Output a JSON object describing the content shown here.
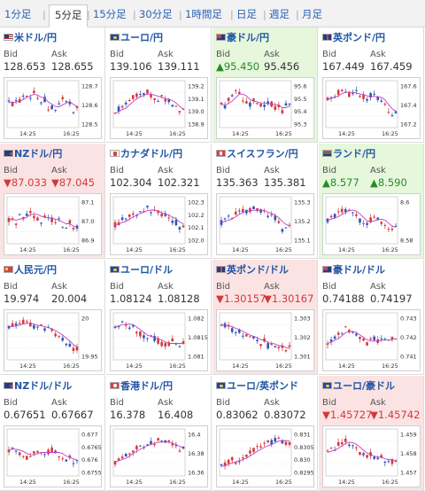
{
  "tabs": [
    "1分足",
    "5分足",
    "15分足",
    "30分足",
    "1時間足",
    "日足",
    "週足",
    "月足"
  ],
  "active_tab": 1,
  "bid_label": "Bid",
  "ask_label": "Ask",
  "x_ticks": [
    "14:25",
    "16:25"
  ],
  "panels": [
    {
      "title": "米ドル/円",
      "flag": "us",
      "bid": "128.653",
      "ask": "128.655",
      "state": "none",
      "bid_arrow": "",
      "ask_arrow": "",
      "y_ticks": [
        "128.7",
        "128.6",
        "128.5"
      ],
      "trend": [
        0.55,
        0.5,
        0.6,
        0.58,
        0.7,
        0.72,
        0.68,
        0.75,
        0.62,
        0.55,
        0.6,
        0.4,
        0.45,
        0.35,
        0.55,
        0.6,
        0.58,
        0.5,
        0.3,
        0.42
      ],
      "ma_color": "#c43fc4"
    },
    {
      "title": "ユーロ/円",
      "flag": "eu",
      "bid": "139.106",
      "ask": "139.111",
      "state": "none",
      "bid_arrow": "",
      "ask_arrow": "",
      "y_ticks": [
        "139.2",
        "139.1",
        "139.0",
        "138.9"
      ],
      "trend": [
        0.3,
        0.4,
        0.45,
        0.5,
        0.6,
        0.65,
        0.7,
        0.68,
        0.72,
        0.75,
        0.7,
        0.6,
        0.62,
        0.65,
        0.6,
        0.55,
        0.5,
        0.45,
        0.3,
        0.35
      ],
      "ma_color": "#c43fc4"
    },
    {
      "title": "豪ドル/円",
      "flag": "au",
      "bid": "95.450",
      "ask": "95.456",
      "state": "up",
      "bid_arrow": "▲",
      "ask_arrow": "",
      "y_ticks": [
        "95.6",
        "95.5",
        "95.4",
        "95.3"
      ],
      "trend": [
        0.5,
        0.45,
        0.6,
        0.7,
        0.8,
        0.75,
        0.6,
        0.55,
        0.5,
        0.6,
        0.55,
        0.45,
        0.5,
        0.55,
        0.5,
        0.4,
        0.45,
        0.35,
        0.5,
        0.55
      ],
      "ma_color": "#c43fc4"
    },
    {
      "title": "英ポンド/円",
      "flag": "gb",
      "bid": "167.449",
      "ask": "167.459",
      "state": "none",
      "bid_arrow": "",
      "ask_arrow": "",
      "y_ticks": [
        "167.6",
        "167.4",
        "167.2"
      ],
      "trend": [
        0.6,
        0.65,
        0.7,
        0.75,
        0.8,
        0.78,
        0.7,
        0.72,
        0.75,
        0.7,
        0.65,
        0.6,
        0.7,
        0.72,
        0.6,
        0.55,
        0.5,
        0.3,
        0.25,
        0.35
      ],
      "ma_color": "#c43fc4"
    },
    {
      "title": "NZドル/円",
      "flag": "nz",
      "bid": "87.033",
      "ask": "87.045",
      "state": "down",
      "bid_arrow": "▼",
      "ask_arrow": "▼",
      "y_ticks": [
        "87.1",
        "87.0",
        "86.9"
      ],
      "trend": [
        0.5,
        0.55,
        0.45,
        0.6,
        0.55,
        0.65,
        0.7,
        0.6,
        0.55,
        0.5,
        0.6,
        0.55,
        0.5,
        0.45,
        0.5,
        0.4,
        0.35,
        0.45,
        0.3,
        0.35
      ],
      "ma_color": "#c43fc4"
    },
    {
      "title": "カナダドル/円",
      "flag": "ca",
      "bid": "102.304",
      "ask": "102.321",
      "state": "none",
      "bid_arrow": "",
      "ask_arrow": "",
      "y_ticks": [
        "102.3",
        "102.2",
        "102.1",
        "102.0"
      ],
      "trend": [
        0.4,
        0.45,
        0.5,
        0.55,
        0.6,
        0.62,
        0.65,
        0.7,
        0.72,
        0.75,
        0.7,
        0.68,
        0.65,
        0.6,
        0.62,
        0.55,
        0.5,
        0.45,
        0.35,
        0.4
      ],
      "ma_color": "#c43fc4"
    },
    {
      "title": "スイスフラン/円",
      "flag": "ch",
      "bid": "135.363",
      "ask": "135.381",
      "state": "none",
      "bid_arrow": "",
      "ask_arrow": "",
      "y_ticks": [
        "135.3",
        "135.2",
        "135.1"
      ],
      "trend": [
        0.45,
        0.5,
        0.55,
        0.6,
        0.65,
        0.7,
        0.72,
        0.68,
        0.7,
        0.75,
        0.72,
        0.7,
        0.65,
        0.62,
        0.6,
        0.55,
        0.45,
        0.3,
        0.35,
        0.4
      ],
      "ma_color": "#c43fc4"
    },
    {
      "title": "ランド/円",
      "flag": "za",
      "bid": "8.577",
      "ask": "8.590",
      "state": "up",
      "bid_arrow": "▲",
      "ask_arrow": "▲",
      "y_ticks": [
        "8.6",
        "8.58"
      ],
      "trend": [
        0.5,
        0.55,
        0.6,
        0.65,
        0.7,
        0.72,
        0.75,
        0.7,
        0.6,
        0.5,
        0.45,
        0.4,
        0.5,
        0.6,
        0.55,
        0.45,
        0.4,
        0.35,
        0.3,
        0.35
      ],
      "ma_color": "#c43fc4"
    },
    {
      "title": "人民元/円",
      "flag": "cn",
      "bid": "19.974",
      "ask": "20.004",
      "state": "none",
      "bid_arrow": "",
      "ask_arrow": "",
      "y_ticks": [
        "20",
        "19.95"
      ],
      "trend": [
        0.7,
        0.72,
        0.75,
        0.78,
        0.8,
        0.78,
        0.75,
        0.72,
        0.7,
        0.72,
        0.68,
        0.65,
        0.6,
        0.55,
        0.5,
        0.45,
        0.35,
        0.3,
        0.2,
        0.25
      ],
      "ma_color": "#c43fc4"
    },
    {
      "title": "ユーロ/ドル",
      "flag": "eu",
      "bid": "1.08124",
      "ask": "1.08128",
      "state": "none",
      "bid_arrow": "",
      "ask_arrow": "",
      "y_ticks": [
        "1.082",
        "1.0815",
        "1.081"
      ],
      "trend": [
        0.7,
        0.75,
        0.8,
        0.78,
        0.72,
        0.7,
        0.6,
        0.55,
        0.5,
        0.45,
        0.5,
        0.45,
        0.4,
        0.35,
        0.3,
        0.35,
        0.4,
        0.35,
        0.3,
        0.35
      ],
      "ma_color": "#c43fc4"
    },
    {
      "title": "英ポンド/ドル",
      "flag": "gb",
      "bid": "1.30157",
      "ask": "1.30167",
      "state": "down",
      "bid_arrow": "▼",
      "ask_arrow": "▼",
      "y_ticks": [
        "1.303",
        "1.302",
        "1.301"
      ],
      "trend": [
        0.75,
        0.72,
        0.7,
        0.65,
        0.62,
        0.6,
        0.55,
        0.5,
        0.45,
        0.5,
        0.42,
        0.35,
        0.4,
        0.3,
        0.35,
        0.3,
        0.25,
        0.3,
        0.2,
        0.25
      ],
      "ma_color": "#c43fc4"
    },
    {
      "title": "豪ドル/ドル",
      "flag": "au",
      "bid": "0.74188",
      "ask": "0.74197",
      "state": "none",
      "bid_arrow": "",
      "ask_arrow": "",
      "y_ticks": [
        "0.743",
        "0.742",
        "0.741"
      ],
      "trend": [
        0.35,
        0.4,
        0.5,
        0.55,
        0.6,
        0.65,
        0.62,
        0.55,
        0.5,
        0.45,
        0.4,
        0.35,
        0.4,
        0.45,
        0.4,
        0.42,
        0.45,
        0.4,
        0.45,
        0.5
      ],
      "ma_color": "#c43fc4"
    },
    {
      "title": "NZドル/ドル",
      "flag": "nz",
      "bid": "0.67651",
      "ask": "0.67667",
      "state": "none",
      "bid_arrow": "",
      "ask_arrow": "",
      "y_ticks": [
        "0.677",
        "0.6765",
        "0.676",
        "0.6755"
      ],
      "trend": [
        0.55,
        0.6,
        0.55,
        0.5,
        0.45,
        0.4,
        0.45,
        0.5,
        0.55,
        0.5,
        0.45,
        0.5,
        0.55,
        0.5,
        0.45,
        0.4,
        0.35,
        0.4,
        0.3,
        0.35
      ],
      "ma_color": "#c43fc4"
    },
    {
      "title": "香港ドル/円",
      "flag": "hk",
      "bid": "16.378",
      "ask": "16.408",
      "state": "none",
      "bid_arrow": "",
      "ask_arrow": "",
      "y_ticks": [
        "16.4",
        "16.38",
        "16.36"
      ],
      "trend": [
        0.3,
        0.35,
        0.4,
        0.45,
        0.5,
        0.55,
        0.6,
        0.62,
        0.65,
        0.7,
        0.72,
        0.7,
        0.75,
        0.72,
        0.7,
        0.72,
        0.65,
        0.6,
        0.55,
        0.6
      ],
      "ma_color": "#c43fc4"
    },
    {
      "title": "ユーロ/英ポンド",
      "flag": "eu",
      "bid": "0.83062",
      "ask": "0.83072",
      "state": "none",
      "bid_arrow": "",
      "ask_arrow": "",
      "y_ticks": [
        "0.831",
        "0.8305",
        "0.830",
        "0.8295"
      ],
      "trend": [
        0.2,
        0.25,
        0.3,
        0.35,
        0.3,
        0.35,
        0.4,
        0.45,
        0.5,
        0.55,
        0.6,
        0.62,
        0.65,
        0.7,
        0.72,
        0.75,
        0.8,
        0.75,
        0.7,
        0.72
      ],
      "ma_color": "#c43fc4"
    },
    {
      "title": "ユーロ/豪ドル",
      "flag": "eu",
      "bid": "1.45727",
      "ask": "1.45742",
      "state": "down",
      "bid_arrow": "▼",
      "ask_arrow": "▼",
      "y_ticks": [
        "1.459",
        "1.458",
        "1.457"
      ],
      "trend": [
        0.5,
        0.55,
        0.6,
        0.7,
        0.72,
        0.75,
        0.7,
        0.65,
        0.6,
        0.5,
        0.45,
        0.4,
        0.45,
        0.4,
        0.35,
        0.4,
        0.3,
        0.35,
        0.3,
        0.32
      ],
      "ma_color": "#c43fc4"
    }
  ]
}
